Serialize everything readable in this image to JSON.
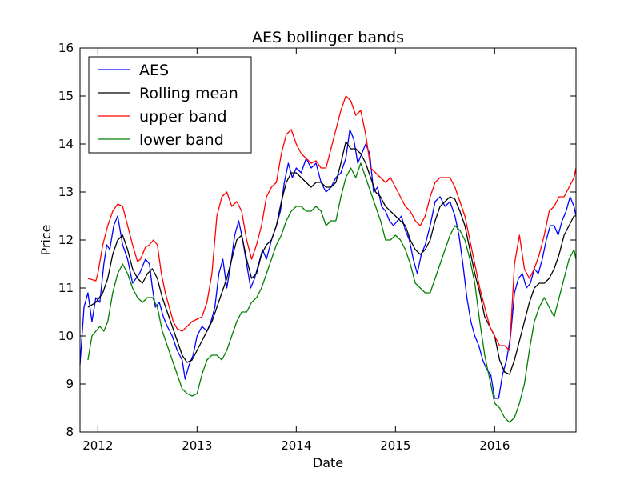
{
  "chart_data": {
    "type": "line",
    "title": "AES bollinger bands",
    "xlabel": "Date",
    "ylabel": "Price",
    "xlim": [
      2011.82,
      2016.82
    ],
    "ylim": [
      8,
      16
    ],
    "x_ticks": [
      {
        "value": 2012,
        "label": "2012"
      },
      {
        "value": 2013,
        "label": "2013"
      },
      {
        "value": 2014,
        "label": "2014"
      },
      {
        "value": 2015,
        "label": "2015"
      },
      {
        "value": 2016,
        "label": "2016"
      }
    ],
    "y_ticks": [
      {
        "value": 8,
        "label": "8"
      },
      {
        "value": 9,
        "label": "9"
      },
      {
        "value": 10,
        "label": "10"
      },
      {
        "value": 11,
        "label": "11"
      },
      {
        "value": 12,
        "label": "12"
      },
      {
        "value": 13,
        "label": "13"
      },
      {
        "value": 14,
        "label": "14"
      },
      {
        "value": 15,
        "label": "15"
      },
      {
        "value": 16,
        "label": "16"
      }
    ],
    "grid": false,
    "legend_position": "top-left",
    "series": [
      {
        "name": "AES",
        "color": "#0000ff",
        "x": [
          2011.82,
          2011.86,
          2011.9,
          2011.94,
          2011.98,
          2012.02,
          2012.06,
          2012.09,
          2012.12,
          2012.16,
          2012.2,
          2012.25,
          2012.3,
          2012.35,
          2012.42,
          2012.48,
          2012.52,
          2012.55,
          2012.58,
          2012.62,
          2012.66,
          2012.7,
          2012.75,
          2012.8,
          2012.85,
          2012.88,
          2012.92,
          2012.96,
          2013.0,
          2013.05,
          2013.1,
          2013.14,
          2013.18,
          2013.22,
          2013.26,
          2013.3,
          2013.34,
          2013.38,
          2013.42,
          2013.46,
          2013.5,
          2013.54,
          2013.58,
          2013.62,
          2013.66,
          2013.7,
          2013.75,
          2013.8,
          2013.84,
          2013.88,
          2013.92,
          2013.96,
          2014.0,
          2014.05,
          2014.1,
          2014.15,
          2014.2,
          2014.25,
          2014.3,
          2014.35,
          2014.4,
          2014.45,
          2014.5,
          2014.54,
          2014.58,
          2014.62,
          2014.66,
          2014.7,
          2014.74,
          2014.78,
          2014.82,
          2014.86,
          2014.9,
          2014.94,
          2014.98,
          2015.02,
          2015.06,
          2015.1,
          2015.14,
          2015.18,
          2015.22,
          2015.26,
          2015.3,
          2015.35,
          2015.4,
          2015.45,
          2015.5,
          2015.55,
          2015.6,
          2015.64,
          2015.68,
          2015.72,
          2015.76,
          2015.8,
          2015.84,
          2015.88,
          2015.92,
          2015.96,
          2016.0,
          2016.04,
          2016.08,
          2016.12,
          2016.16,
          2016.2,
          2016.24,
          2016.28,
          2016.32,
          2016.36,
          2016.4,
          2016.44,
          2016.48,
          2016.52,
          2016.56,
          2016.6,
          2016.64,
          2016.68,
          2016.72,
          2016.76,
          2016.8,
          2016.82
        ],
        "y": [
          9.4,
          10.6,
          10.9,
          10.3,
          10.8,
          10.7,
          11.5,
          11.9,
          11.8,
          12.3,
          12.5,
          11.9,
          11.6,
          11.1,
          11.3,
          11.6,
          11.5,
          11.0,
          10.6,
          10.7,
          10.4,
          10.2,
          10.0,
          9.7,
          9.5,
          9.1,
          9.4,
          9.6,
          10.0,
          10.2,
          10.1,
          10.3,
          10.6,
          11.3,
          11.6,
          11.0,
          11.5,
          12.1,
          12.4,
          12.0,
          11.5,
          11.0,
          11.2,
          11.5,
          11.8,
          11.6,
          12.0,
          12.3,
          12.6,
          13.2,
          13.6,
          13.3,
          13.5,
          13.4,
          13.7,
          13.5,
          13.6,
          13.2,
          13.0,
          13.1,
          13.3,
          13.4,
          13.7,
          14.3,
          14.1,
          13.6,
          13.8,
          14.0,
          13.8,
          13.0,
          13.1,
          12.7,
          12.6,
          12.4,
          12.3,
          12.4,
          12.5,
          12.2,
          12.0,
          11.6,
          11.3,
          11.7,
          11.9,
          12.3,
          12.8,
          12.9,
          12.7,
          12.8,
          12.5,
          12.1,
          11.5,
          10.8,
          10.3,
          10.0,
          9.8,
          9.5,
          9.3,
          9.2,
          8.7,
          8.7,
          9.2,
          9.5,
          10.0,
          10.9,
          11.2,
          11.3,
          11.0,
          11.1,
          11.4,
          11.3,
          11.6,
          12.0,
          12.3,
          12.3,
          12.1,
          12.4,
          12.6,
          12.9,
          12.7,
          12.5
        ]
      },
      {
        "name": "Rolling mean",
        "color": "#000000",
        "x": [
          2011.9,
          2011.98,
          2012.05,
          2012.1,
          2012.15,
          2012.2,
          2012.25,
          2012.3,
          2012.35,
          2012.4,
          2012.45,
          2012.5,
          2012.55,
          2012.6,
          2012.65,
          2012.7,
          2012.75,
          2012.8,
          2012.85,
          2012.9,
          2012.95,
          2013.0,
          2013.05,
          2013.1,
          2013.15,
          2013.2,
          2013.25,
          2013.3,
          2013.35,
          2013.4,
          2013.45,
          2013.5,
          2013.55,
          2013.6,
          2013.65,
          2013.7,
          2013.75,
          2013.8,
          2013.85,
          2013.9,
          2013.95,
          2014.0,
          2014.05,
          2014.1,
          2014.15,
          2014.2,
          2014.25,
          2014.3,
          2014.35,
          2014.4,
          2014.45,
          2014.5,
          2014.55,
          2014.6,
          2014.65,
          2014.7,
          2014.75,
          2014.8,
          2014.85,
          2014.9,
          2014.95,
          2015.0,
          2015.05,
          2015.1,
          2015.15,
          2015.2,
          2015.25,
          2015.3,
          2015.35,
          2015.4,
          2015.45,
          2015.5,
          2015.55,
          2015.6,
          2015.65,
          2015.7,
          2015.75,
          2015.8,
          2015.85,
          2015.9,
          2015.95,
          2016.0,
          2016.05,
          2016.1,
          2016.15,
          2016.2,
          2016.25,
          2016.3,
          2016.35,
          2016.4,
          2016.45,
          2016.5,
          2016.55,
          2016.6,
          2016.65,
          2016.7,
          2016.75,
          2016.8,
          2016.82
        ],
        "y": [
          10.6,
          10.7,
          10.9,
          11.2,
          11.7,
          12.0,
          12.1,
          11.8,
          11.4,
          11.2,
          11.1,
          11.3,
          11.4,
          11.2,
          10.8,
          10.5,
          10.2,
          9.9,
          9.6,
          9.45,
          9.5,
          9.7,
          9.9,
          10.1,
          10.3,
          10.6,
          10.9,
          11.2,
          11.6,
          12.0,
          12.1,
          11.6,
          11.2,
          11.3,
          11.7,
          11.9,
          12.0,
          12.3,
          12.8,
          13.2,
          13.4,
          13.4,
          13.3,
          13.2,
          13.1,
          13.2,
          13.2,
          13.1,
          13.1,
          13.2,
          13.6,
          14.05,
          13.9,
          13.9,
          13.8,
          13.6,
          13.3,
          13.0,
          12.9,
          12.7,
          12.6,
          12.5,
          12.4,
          12.3,
          12.0,
          11.8,
          11.7,
          11.8,
          12.0,
          12.4,
          12.7,
          12.8,
          12.9,
          12.85,
          12.6,
          12.3,
          11.8,
          11.3,
          10.9,
          10.4,
          10.2,
          10.0,
          9.5,
          9.25,
          9.2,
          9.5,
          9.9,
          10.3,
          10.7,
          11.0,
          11.1,
          11.1,
          11.2,
          11.4,
          11.7,
          12.1,
          12.3,
          12.5,
          12.5
        ]
      },
      {
        "name": "upper band",
        "color": "#ff0000",
        "x": [
          2011.9,
          2011.98,
          2012.0,
          2012.05,
          2012.1,
          2012.15,
          2012.2,
          2012.25,
          2012.3,
          2012.35,
          2012.4,
          2012.43,
          2012.48,
          2012.52,
          2012.56,
          2012.6,
          2012.64,
          2012.68,
          2012.72,
          2012.76,
          2012.8,
          2012.85,
          2012.9,
          2012.95,
          2013.0,
          2013.05,
          2013.1,
          2013.15,
          2013.2,
          2013.25,
          2013.3,
          2013.35,
          2013.4,
          2013.45,
          2013.5,
          2013.55,
          2013.6,
          2013.65,
          2013.7,
          2013.75,
          2013.8,
          2013.85,
          2013.9,
          2013.95,
          2014.0,
          2014.05,
          2014.1,
          2014.15,
          2014.2,
          2014.25,
          2014.3,
          2014.35,
          2014.4,
          2014.45,
          2014.5,
          2014.55,
          2014.6,
          2014.65,
          2014.7,
          2014.75,
          2014.8,
          2014.85,
          2014.9,
          2014.95,
          2015.0,
          2015.05,
          2015.1,
          2015.15,
          2015.2,
          2015.25,
          2015.3,
          2015.35,
          2015.4,
          2015.45,
          2015.5,
          2015.55,
          2015.6,
          2015.65,
          2015.7,
          2015.75,
          2015.8,
          2015.85,
          2015.9,
          2015.95,
          2016.0,
          2016.05,
          2016.1,
          2016.15,
          2016.2,
          2016.25,
          2016.3,
          2016.35,
          2016.4,
          2016.45,
          2016.5,
          2016.55,
          2016.6,
          2016.65,
          2016.7,
          2016.75,
          2016.8,
          2016.82
        ],
        "y": [
          11.2,
          11.15,
          11.3,
          11.9,
          12.3,
          12.6,
          12.75,
          12.7,
          12.3,
          11.9,
          11.55,
          11.6,
          11.85,
          11.9,
          12.0,
          11.9,
          11.3,
          10.9,
          10.6,
          10.3,
          10.15,
          10.1,
          10.2,
          10.3,
          10.35,
          10.4,
          10.7,
          11.3,
          12.5,
          12.9,
          13.0,
          12.7,
          12.8,
          12.6,
          12.0,
          11.6,
          11.9,
          12.3,
          12.9,
          13.1,
          13.2,
          13.8,
          14.2,
          14.3,
          14.0,
          13.8,
          13.7,
          13.6,
          13.65,
          13.5,
          13.5,
          13.9,
          14.3,
          14.7,
          15.0,
          14.9,
          14.6,
          14.7,
          14.2,
          13.5,
          13.4,
          13.3,
          13.2,
          13.3,
          13.1,
          12.9,
          12.7,
          12.6,
          12.4,
          12.3,
          12.5,
          12.9,
          13.2,
          13.3,
          13.3,
          13.3,
          13.1,
          12.8,
          12.5,
          12.0,
          11.5,
          11.0,
          10.6,
          10.2,
          10.0,
          9.8,
          9.8,
          9.7,
          11.5,
          12.1,
          11.4,
          11.2,
          11.4,
          11.7,
          12.1,
          12.6,
          12.7,
          12.9,
          12.9,
          13.1,
          13.3,
          13.5
        ]
      },
      {
        "name": "lower band",
        "color": "#008000",
        "x": [
          2011.9,
          2011.94,
          2011.98,
          2012.02,
          2012.06,
          2012.1,
          2012.15,
          2012.2,
          2012.25,
          2012.3,
          2012.35,
          2012.4,
          2012.45,
          2012.5,
          2012.55,
          2012.6,
          2012.65,
          2012.7,
          2012.75,
          2012.8,
          2012.85,
          2012.9,
          2012.95,
          2013.0,
          2013.05,
          2013.1,
          2013.15,
          2013.2,
          2013.25,
          2013.3,
          2013.35,
          2013.4,
          2013.45,
          2013.5,
          2013.55,
          2013.6,
          2013.65,
          2013.7,
          2013.75,
          2013.8,
          2013.85,
          2013.9,
          2013.95,
          2014.0,
          2014.05,
          2014.1,
          2014.15,
          2014.2,
          2014.25,
          2014.3,
          2014.35,
          2014.4,
          2014.45,
          2014.5,
          2014.55,
          2014.6,
          2014.65,
          2014.7,
          2014.75,
          2014.8,
          2014.85,
          2014.9,
          2014.95,
          2015.0,
          2015.05,
          2015.1,
          2015.15,
          2015.2,
          2015.25,
          2015.3,
          2015.35,
          2015.4,
          2015.45,
          2015.5,
          2015.55,
          2015.6,
          2015.65,
          2015.7,
          2015.75,
          2015.8,
          2015.85,
          2015.9,
          2015.95,
          2016.0,
          2016.05,
          2016.1,
          2016.15,
          2016.2,
          2016.25,
          2016.3,
          2016.35,
          2016.4,
          2016.45,
          2016.5,
          2016.55,
          2016.6,
          2016.65,
          2016.7,
          2016.75,
          2016.8,
          2016.82
        ],
        "y": [
          9.5,
          10.0,
          10.1,
          10.2,
          10.1,
          10.3,
          10.9,
          11.3,
          11.5,
          11.3,
          11.0,
          10.8,
          10.7,
          10.8,
          10.8,
          10.6,
          10.1,
          9.8,
          9.5,
          9.2,
          8.9,
          8.8,
          8.75,
          8.8,
          9.2,
          9.5,
          9.6,
          9.6,
          9.5,
          9.7,
          10.0,
          10.3,
          10.5,
          10.5,
          10.7,
          10.8,
          11.0,
          11.3,
          11.6,
          11.9,
          12.1,
          12.4,
          12.6,
          12.7,
          12.7,
          12.6,
          12.6,
          12.7,
          12.6,
          12.3,
          12.4,
          12.4,
          12.9,
          13.3,
          13.5,
          13.3,
          13.6,
          13.3,
          13.0,
          12.7,
          12.4,
          12.0,
          12.0,
          12.1,
          12.0,
          11.8,
          11.5,
          11.1,
          11.0,
          10.9,
          10.9,
          11.2,
          11.5,
          11.8,
          12.1,
          12.3,
          12.2,
          12.0,
          11.6,
          11.1,
          10.3,
          9.6,
          9.1,
          8.6,
          8.5,
          8.3,
          8.2,
          8.3,
          8.6,
          9.0,
          9.7,
          10.3,
          10.6,
          10.8,
          10.6,
          10.4,
          10.8,
          11.2,
          11.6,
          11.8,
          11.6
        ]
      }
    ]
  }
}
